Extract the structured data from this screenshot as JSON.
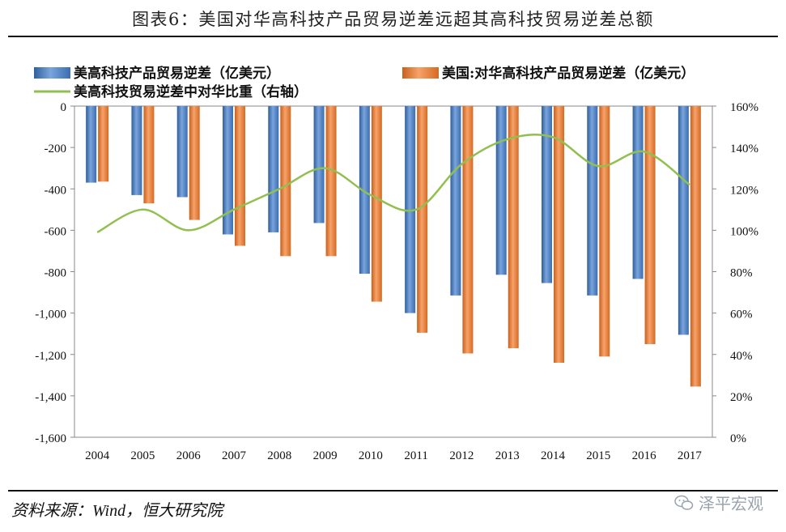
{
  "header": {
    "title": "图表6：美国对华高科技产品贸易逆差远超其高科技贸易逆差总额"
  },
  "footer": {
    "source": "资料来源：Wind，恒大研究院",
    "watermark": "泽平宏观"
  },
  "colors": {
    "blue": "#4f81bd",
    "orange": "#ed7d31",
    "green": "#92c050",
    "axis": "#7f7f7f"
  },
  "chart_data": {
    "type": "bar",
    "categories": [
      "2004",
      "2005",
      "2006",
      "2007",
      "2008",
      "2009",
      "2010",
      "2011",
      "2012",
      "2013",
      "2014",
      "2015",
      "2016",
      "2017"
    ],
    "series": [
      {
        "name": "美高科技产品贸易逆差（亿美元）",
        "axis": "left",
        "type": "bar",
        "values": [
          -370,
          -430,
          -440,
          -620,
          -610,
          -565,
          -810,
          -1000,
          -915,
          -815,
          -855,
          -915,
          -835,
          -1105
        ]
      },
      {
        "name": "美国:对华高科技产品贸易逆差（亿美元）",
        "axis": "left",
        "type": "bar",
        "values": [
          -365,
          -470,
          -550,
          -675,
          -725,
          -725,
          -945,
          -1095,
          -1195,
          -1170,
          -1240,
          -1210,
          -1150,
          -1355
        ]
      },
      {
        "name": "美高科技贸易逆差中对华比重（右轴）",
        "axis": "right",
        "type": "line",
        "values": [
          99,
          110,
          100,
          110,
          120,
          130,
          117,
          110,
          132,
          144,
          145,
          131,
          138,
          122
        ]
      }
    ],
    "y_left": {
      "min": -1600,
      "max": 0,
      "ticks": [
        "0",
        "-200",
        "-400",
        "-600",
        "-800",
        "-1,000",
        "-1,200",
        "-1,400",
        "-1,600"
      ]
    },
    "y_right": {
      "min": 0,
      "max": 160,
      "ticks": [
        "160%",
        "140%",
        "120%",
        "100%",
        "80%",
        "60%",
        "40%",
        "20%",
        "0%"
      ]
    },
    "legend_position": "top"
  }
}
